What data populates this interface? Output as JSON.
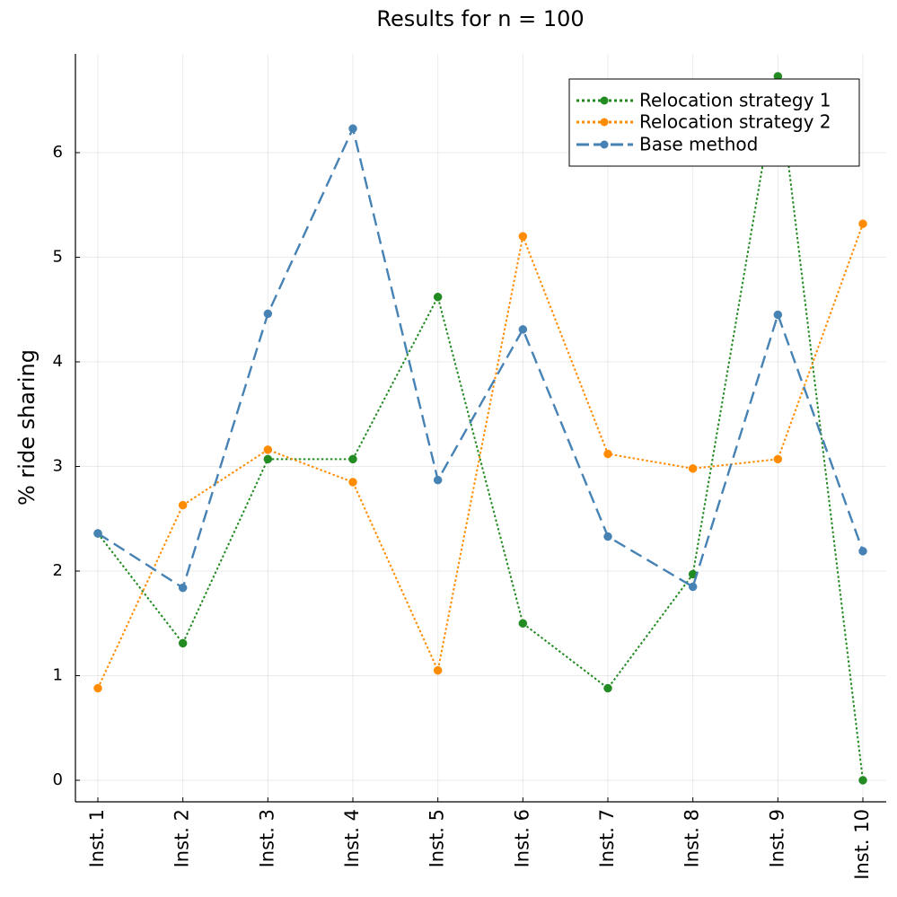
{
  "chart_data": {
    "type": "line",
    "title": "Results for n = 100",
    "xlabel": "",
    "ylabel": "% ride sharing",
    "categories": [
      "Inst. 1",
      "Inst. 2",
      "Inst. 3",
      "Inst. 4",
      "Inst. 5",
      "Inst. 6",
      "Inst. 7",
      "Inst. 8",
      "Inst. 9",
      "Inst. 10"
    ],
    "yticks": [
      0,
      1,
      2,
      3,
      4,
      5,
      6
    ],
    "ylim": [
      -0.2,
      7.0
    ],
    "grid": true,
    "legend_position": "top-right",
    "series": [
      {
        "name": "Relocation strategy 1",
        "color": "#228B22",
        "line_style": "dotted",
        "values": [
          2.36,
          1.31,
          3.07,
          3.07,
          4.62,
          1.5,
          0.88,
          1.97,
          6.73,
          0.0
        ]
      },
      {
        "name": "Relocation strategy 2",
        "color": "#FF8C00",
        "line_style": "dotted",
        "values": [
          0.88,
          2.63,
          3.16,
          2.85,
          1.05,
          5.2,
          3.12,
          2.98,
          3.07,
          5.32
        ]
      },
      {
        "name": "Base method",
        "color": "#4682B4",
        "line_style": "dashed",
        "values": [
          2.36,
          1.84,
          4.46,
          6.23,
          2.87,
          4.31,
          2.33,
          1.85,
          4.45,
          2.19
        ]
      }
    ]
  }
}
